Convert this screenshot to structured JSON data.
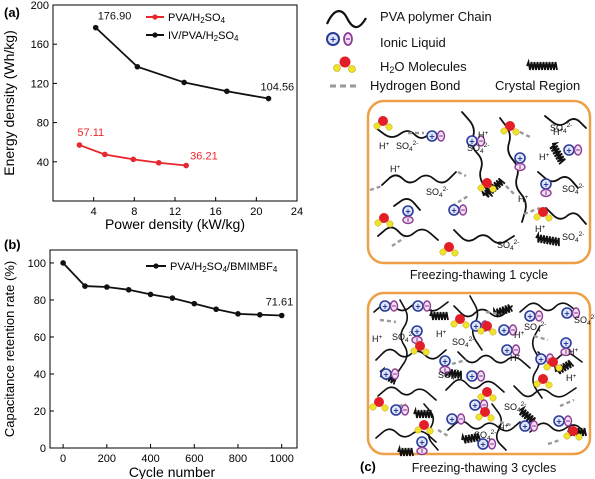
{
  "chart_data": [
    {
      "panel": "(a)",
      "type": "line",
      "xlabel": "Power density (kW/kg)",
      "ylabel": "Energy density (Wh/kg)",
      "xlim": [
        0,
        24
      ],
      "ylim": [
        0,
        200
      ],
      "xticks": [
        "4",
        "8",
        "12",
        "16",
        "20",
        "24"
      ],
      "yticks": [
        "40",
        "80",
        "120",
        "160",
        "200"
      ],
      "legend_position": "top-right",
      "series": [
        {
          "name": "PVA/H2SO4",
          "color": "#e8262d",
          "x": [
            2.6,
            5.1,
            7.9,
            10.4,
            13.1
          ],
          "y": [
            57.11,
            47.5,
            42.5,
            39.0,
            36.21
          ],
          "labels": [
            {
              "index": 0,
              "text": "57.11"
            },
            {
              "index": 4,
              "text": "36.21"
            }
          ]
        },
        {
          "name": "IV/PVA/H2SO4",
          "color": "#111111",
          "x": [
            4.2,
            8.3,
            12.9,
            17.1,
            21.2
          ],
          "y": [
            176.9,
            137.0,
            121.0,
            112.0,
            104.56
          ],
          "labels": [
            {
              "index": 0,
              "text": "176.90"
            },
            {
              "index": 4,
              "text": "104.56"
            }
          ]
        }
      ]
    },
    {
      "panel": "(b)",
      "type": "line",
      "xlabel": "Cycle number",
      "ylabel": "Capacitance retention rate (%)",
      "xlim": [
        -60,
        1070
      ],
      "ylim": [
        0,
        107
      ],
      "xticks": [
        "0",
        "200",
        "400",
        "600",
        "800",
        "1000"
      ],
      "yticks": [
        "0",
        "20",
        "40",
        "60",
        "80",
        "100"
      ],
      "legend_position": "top-right",
      "series": [
        {
          "name": "PVA/H2SO4/BMIMBF4",
          "color": "#111111",
          "x": [
            0,
            100,
            200,
            300,
            400,
            500,
            600,
            700,
            800,
            900,
            1000
          ],
          "y": [
            100,
            87.5,
            87.0,
            85.5,
            83.0,
            81.0,
            78.0,
            75.0,
            72.5,
            72.0,
            71.61
          ],
          "labels": [
            {
              "index": 10,
              "text": "71.61"
            }
          ]
        }
      ]
    }
  ],
  "diagram": {
    "panel": "(c)",
    "legend": {
      "chain": "PVA polymer Chain",
      "ionic": "Ionic Liquid",
      "water": "H2O Molecules",
      "hbond": "Hydrogen Bond",
      "crystal": "Crystal Region"
    },
    "caption1": "Freezing-thawing 1 cycle",
    "caption2": "Freezing-thawing 3 cycles",
    "box1_ions": [
      [
        "H+",
        379,
        149
      ],
      [
        "SO42-",
        396,
        149
      ],
      [
        "H+",
        390,
        172
      ],
      [
        "SO42-",
        467,
        151
      ],
      [
        "H+",
        478,
        138
      ],
      [
        "SO42-",
        550,
        131
      ],
      [
        "H+",
        539,
        160
      ],
      [
        "H+",
        553,
        135
      ],
      [
        "H+",
        518,
        202
      ],
      [
        "SO42-",
        562,
        240
      ],
      [
        "H+",
        535,
        232
      ],
      [
        "SO42-",
        497,
        248
      ],
      [
        "SO42-",
        426,
        195
      ],
      [
        "SO42-",
        562,
        192
      ]
    ],
    "box2_ions": [
      [
        "H+",
        372,
        342
      ],
      [
        "SO42-",
        392,
        340
      ],
      [
        "SO42-",
        452,
        345
      ],
      [
        "SO42-",
        524,
        330
      ],
      [
        "H+",
        514,
        338
      ],
      [
        "SO42-",
        574,
        323
      ],
      [
        "H+",
        568,
        355
      ],
      [
        "H+",
        510,
        361
      ],
      [
        "SO42-",
        438,
        378
      ],
      [
        "SO42-",
        504,
        410
      ],
      [
        "H+",
        498,
        431
      ],
      [
        "SO42-",
        474,
        438
      ],
      [
        "H+",
        566,
        381
      ],
      [
        "H+",
        436,
        337
      ]
    ]
  }
}
